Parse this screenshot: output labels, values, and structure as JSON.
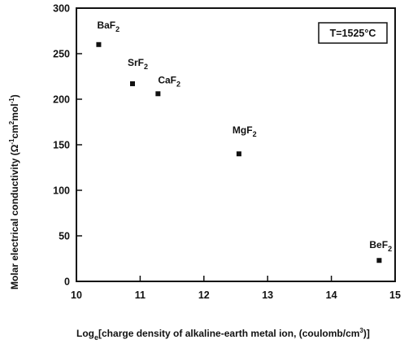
{
  "chart_data": {
    "type": "scatter",
    "xlabel": {
      "prefix": "Log",
      "sub": "e",
      "main": "[charge density of alkaline-earth metal ion, (coulomb/cm",
      "sup": "3",
      "end": ")]"
    },
    "ylabel": {
      "prefix": "Molar electrical conductivity (Ω",
      "sup1": "-1",
      "mid": "cm",
      "sup2": "2",
      "mid2": "mol",
      "sup3": "-1",
      "end": ")"
    },
    "xlim": [
      10,
      15
    ],
    "ylim": [
      0,
      300
    ],
    "xticks": [
      "10",
      "11",
      "12",
      "13",
      "14",
      "15"
    ],
    "yticks": [
      "0",
      "50",
      "100",
      "150",
      "200",
      "250",
      "300"
    ],
    "points": [
      {
        "base": "BaF",
        "sub": "2",
        "x": 10.35,
        "y": 260
      },
      {
        "base": "SrF",
        "sub": "2",
        "x": 10.88,
        "y": 217
      },
      {
        "base": "CaF",
        "sub": "2",
        "x": 11.28,
        "y": 206
      },
      {
        "base": "MgF",
        "sub": "2",
        "x": 12.55,
        "y": 140
      },
      {
        "base": "BeF",
        "sub": "2",
        "x": 14.75,
        "y": 23
      }
    ],
    "annotation": "T=1525°C",
    "grid": false,
    "legend": "none"
  }
}
